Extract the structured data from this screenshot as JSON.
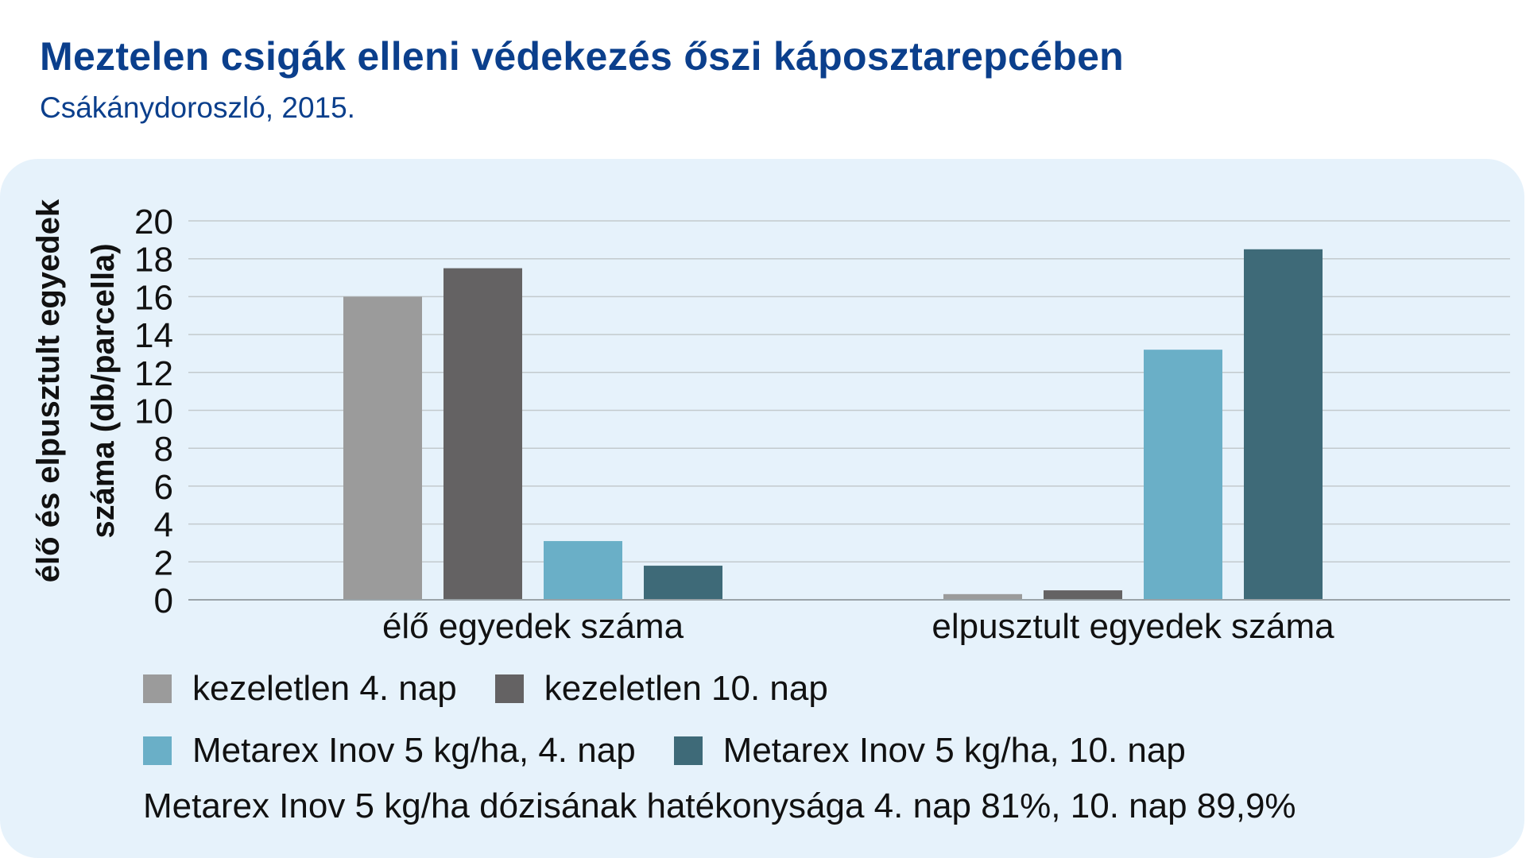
{
  "header": {
    "title": "Meztelen csigák elleni védekezés őszi káposztarepcében",
    "subtitle": "Csákánydoroszló, 2015."
  },
  "chart_data": {
    "type": "bar",
    "categories": [
      "élő egyedek száma",
      "elpusztult egyedek száma"
    ],
    "series": [
      {
        "name": "kezeletlen 4. nap",
        "color": "#9b9b9b",
        "values": [
          16,
          0.3
        ]
      },
      {
        "name": "kezeletlen 10. nap",
        "color": "#646263",
        "values": [
          17.5,
          0.5
        ]
      },
      {
        "name": "Metarex Inov 5 kg/ha, 4. nap",
        "color": "#6aafc7",
        "values": [
          3.1,
          13.2
        ]
      },
      {
        "name": "Metarex Inov 5 kg/ha, 10. nap",
        "color": "#3e6a78",
        "values": [
          1.8,
          18.5
        ]
      }
    ],
    "ylabel": [
      "élő és elpusztult egyedek",
      "száma (db/parcella)"
    ],
    "ylim": [
      0,
      20
    ],
    "yticks": [
      0,
      2,
      4,
      6,
      8,
      10,
      12,
      14,
      16,
      18,
      20
    ],
    "grid": true,
    "legend_position": "bottom"
  },
  "note": "Metarex Inov 5 kg/ha dózisának hatékonysága 4. nap 81%, 10. nap 89,9%"
}
